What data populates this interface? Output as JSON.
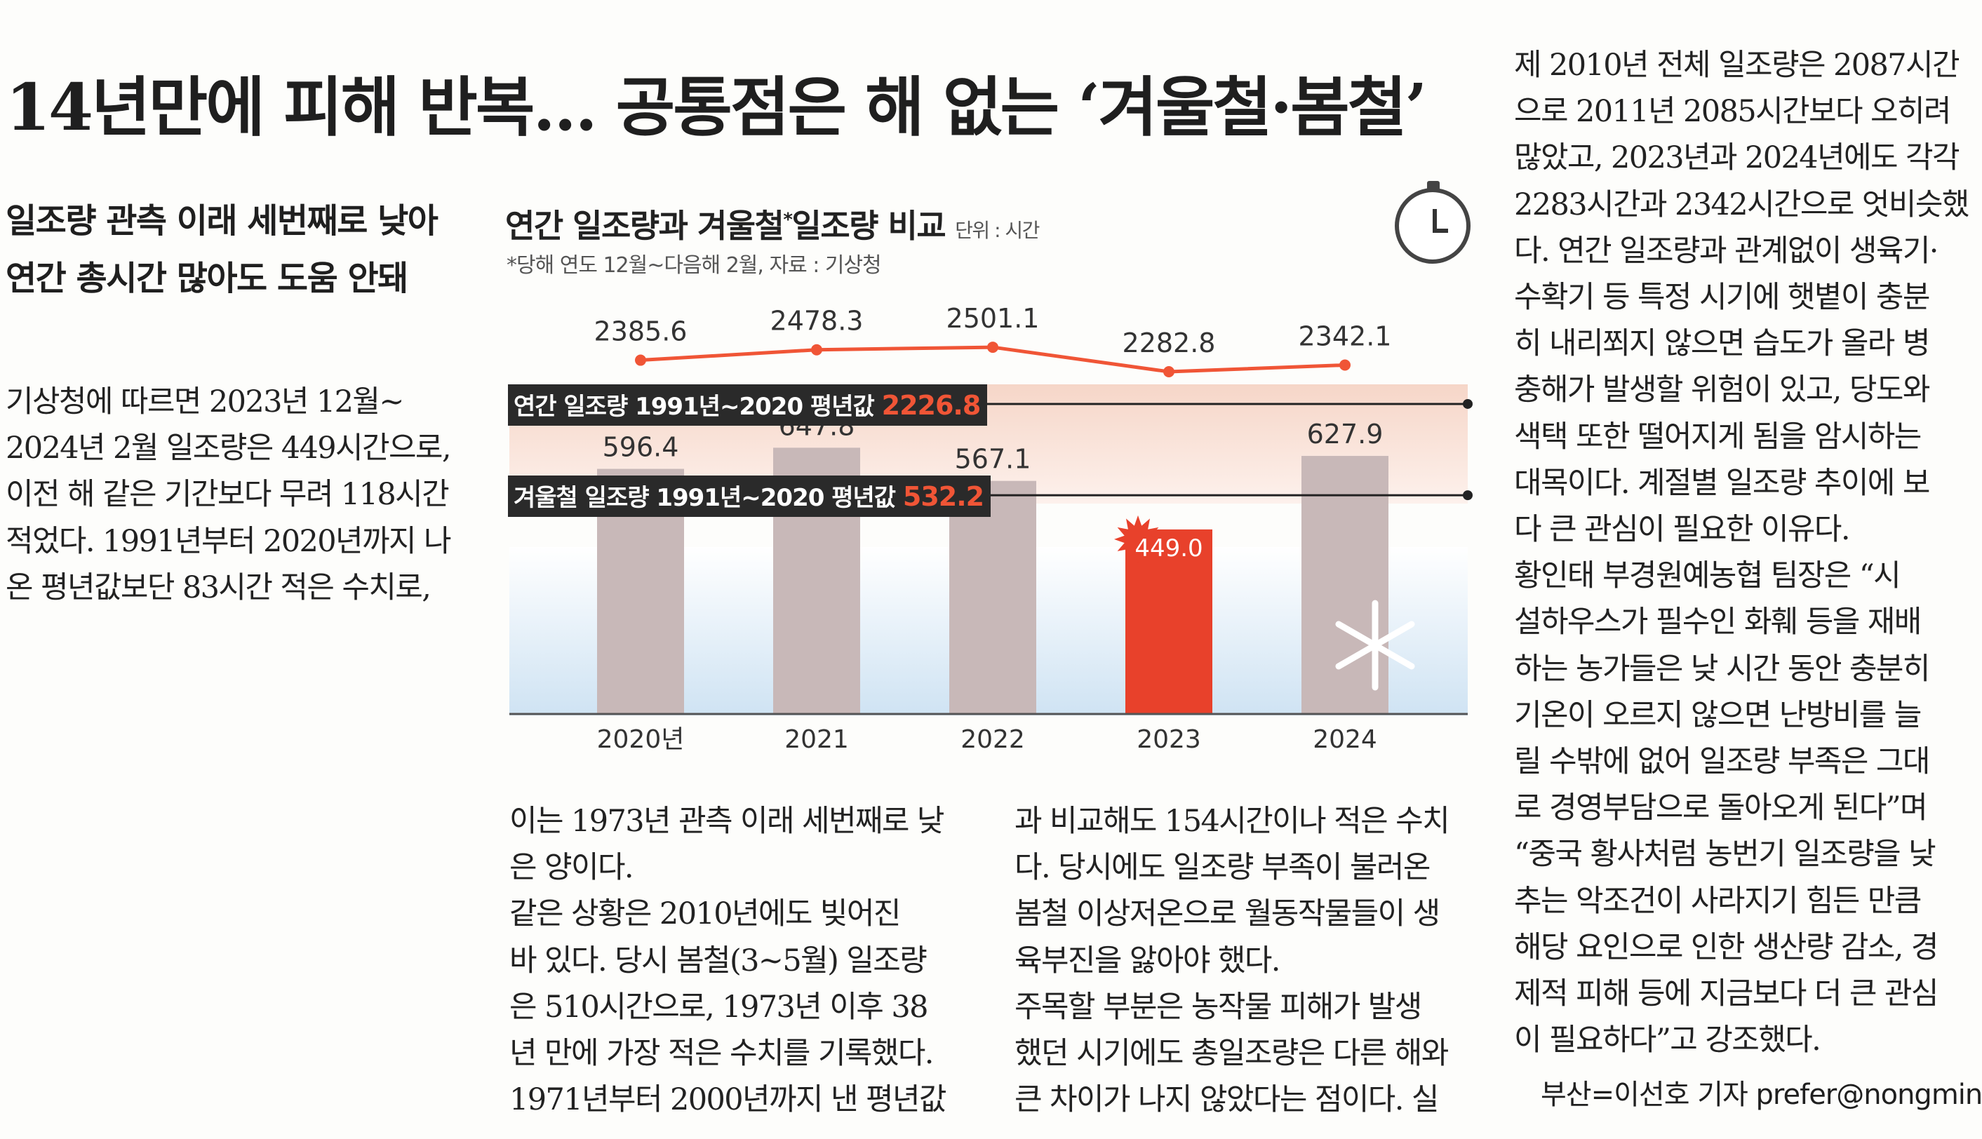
{
  "headline": "14년만에 피해 반복… 공통점은 해 없는 ‘겨울철·봄철’",
  "subheads": [
    "일조량 관측 이래 세번째로 낮아",
    "연간 총시간 많아도 도움 안돼"
  ],
  "col1": [
    "  기상청에 따르면 2023년 12월~",
    "2024년 2월 일조량은 449시간으로,",
    "이전 해 같은 기간보다 무려 118시간",
    "적었다. 1991년부터 2020년까지 나",
    "온 평년값보단 83시간 적은 수치로,"
  ],
  "col2": [
    "이는 1973년 관측 이래 세번째로 낮",
    "은 양이다.",
    "  같은 상황은 2010년에도 빚어진",
    "바 있다. 당시 봄철(3~5월) 일조량",
    "은 510시간으로, 1973년 이후 38",
    "년 만에 가장 적은 수치를 기록했다.",
    "1971년부터 2000년까지 낸 평년값"
  ],
  "col3": [
    "과 비교해도 154시간이나 적은 수치",
    "다. 당시에도 일조량 부족이 불러온",
    "봄철 이상저온으로 월동작물들이 생",
    "육부진을 앓아야 했다.",
    "  주목할 부분은 농작물 피해가 발생",
    "했던 시기에도 총일조량은 다른 해와",
    "큰 차이가 나지 않았다는 점이다. 실"
  ],
  "col4": [
    "제 2010년 전체 일조량은 2087시간",
    "으로 2011년 2085시간보다 오히려",
    "많았고, 2023년과 2024년에도 각각",
    "2283시간과 2342시간으로 엇비슷했",
    "다. 연간 일조량과 관계없이 생육기·",
    "수확기 등 특정 시기에 햇볕이 충분",
    "히 내리쬐지 않으면 습도가 올라 병",
    "충해가 발생할 위험이 있고, 당도와",
    "색택 또한 떨어지게 됨을 암시하는",
    "대목이다. 계절별 일조량 추이에 보",
    "다 큰 관심이 필요한 이유다.",
    "  황인태 부경원예농협 팀장은 “시",
    "설하우스가 필수인 화훼 등을 재배",
    "하는 농가들은 낮 시간 동안 충분히",
    "기온이 오르지 않으면 난방비를 늘",
    "릴 수밖에 없어 일조량 부족은 그대",
    "로 경영부담으로 돌아오게 된다”며",
    "“중국 황사처럼 농번기 일조량을 낮",
    "추는 악조건이 사라지기 힘든 만큼",
    "해당 요인으로 인한 생산량 감소, 경",
    "제적 피해 등에 지금보다 더 큰 관심",
    "이 필요하다”고 강조했다."
  ],
  "byline": "부산=이선호 기자 prefer@nongmin.com",
  "chart": {
    "title": "연간 일조량과 겨울철",
    "title_mark": "*",
    "title_end": "일조량 비교",
    "unit": "단위 : 시간",
    "note": "*당해 연도 12월~다음해 2월, 자료 : 기상청",
    "annual_ref_label": "연간 일조량 1991년~2020 평년값",
    "annual_ref_value": "2226.8",
    "winter_ref_label": "겨울철 일조량 1991년~2020 평년값",
    "winter_ref_value": "532.2"
  },
  "chart_data": {
    "type": "bar",
    "categories": [
      "2020년",
      "2021",
      "2022",
      "2023",
      "2024"
    ],
    "series": [
      {
        "values": [
          2385.6,
          2478.3,
          2501.1,
          2282.8,
          2342.1
        ],
        "labels": [
          "2385.6",
          "2478.3",
          "2501.1",
          "2282.8",
          "2342.1"
        ]
      },
      {
        "values": [
          596.4,
          647.8,
          567.1,
          449.0,
          627.9
        ],
        "labels": [
          "596.4",
          "647.8",
          "567.1",
          "449.0",
          "627.9"
        ]
      }
    ],
    "reference_lines": [
      2226.8,
      532.2
    ],
    "colors": {
      "line": "#f05536",
      "bar": "#c8b8b8",
      "bar_highlight": "#e8412b",
      "ref_value": "#f05536"
    }
  }
}
